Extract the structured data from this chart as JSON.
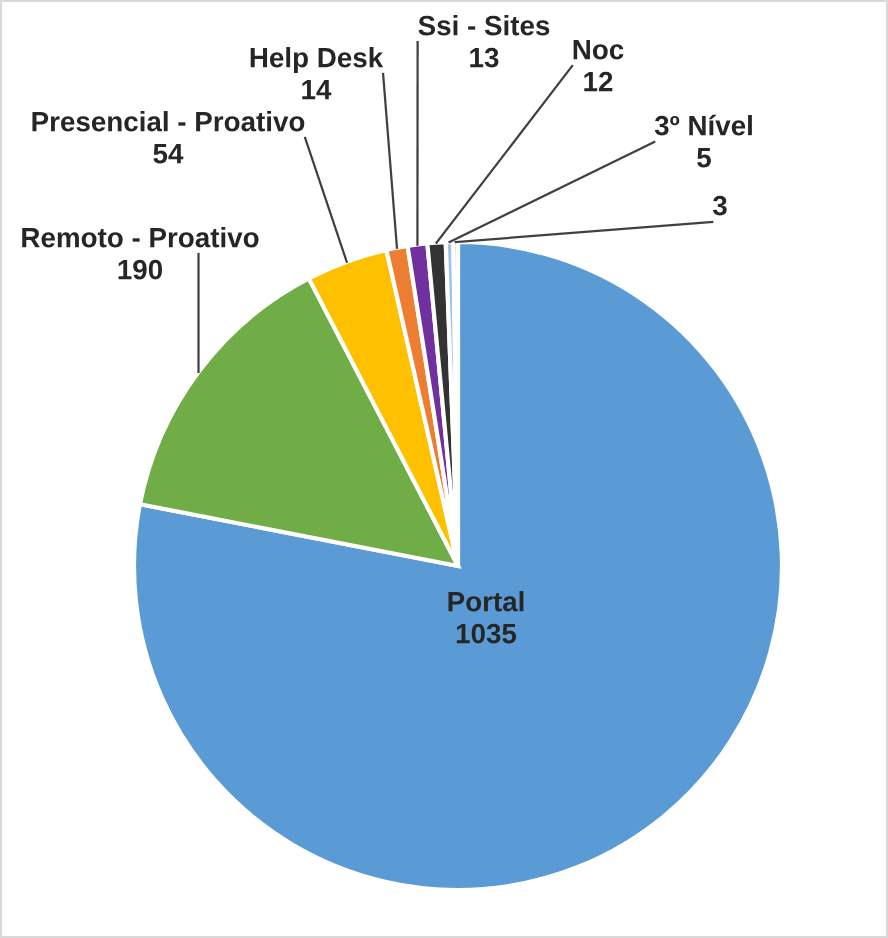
{
  "chart_data": {
    "type": "pie",
    "categories": [
      "Portal",
      "Remoto - Proativo",
      "Presencial - Proativo",
      "Help Desk",
      "Ssi - Sites",
      "Noc",
      "3º Nível",
      null
    ],
    "values": [
      1035,
      190,
      54,
      14,
      13,
      12,
      5,
      3
    ],
    "colors": [
      "#5b9bd5",
      "#70ad47",
      "#ffc000",
      "#ed7d31",
      "#7030a0",
      "#333333",
      "#9dc3e6",
      "#f4b183"
    ],
    "data_labels": true
  }
}
